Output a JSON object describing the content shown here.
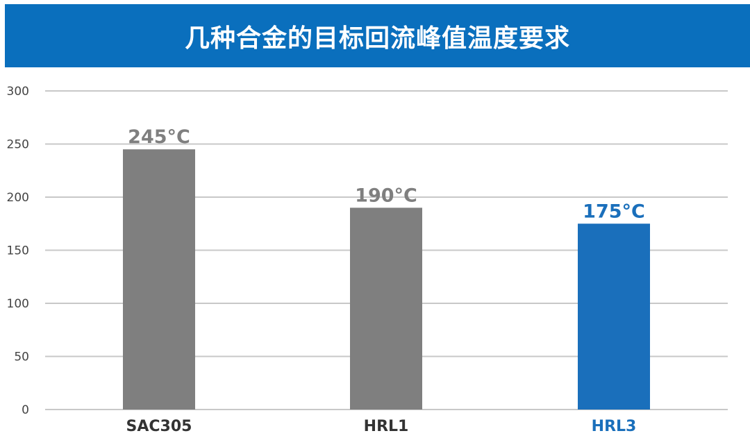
{
  "chart_data": {
    "type": "bar",
    "title": "几种合金的目标回流峰值温度要求",
    "categories": [
      "SAC305",
      "HRL1",
      "HRL3"
    ],
    "values": [
      245,
      190,
      175
    ],
    "data_labels": [
      "245°C",
      "190°C",
      "175°C"
    ],
    "ylim": [
      0,
      300
    ],
    "yticks": [
      0,
      50,
      100,
      150,
      200,
      250,
      300
    ],
    "grid": true,
    "colors": [
      "#7f7f7f",
      "#7f7f7f",
      "#1a6fbb"
    ],
    "label_colors": [
      "#7f7f7f",
      "#7f7f7f",
      "#1a6fbb"
    ],
    "category_label_colors": [
      "#333333",
      "#333333",
      "#1a6fbb"
    ],
    "banner_color": "#0a6fbd"
  }
}
